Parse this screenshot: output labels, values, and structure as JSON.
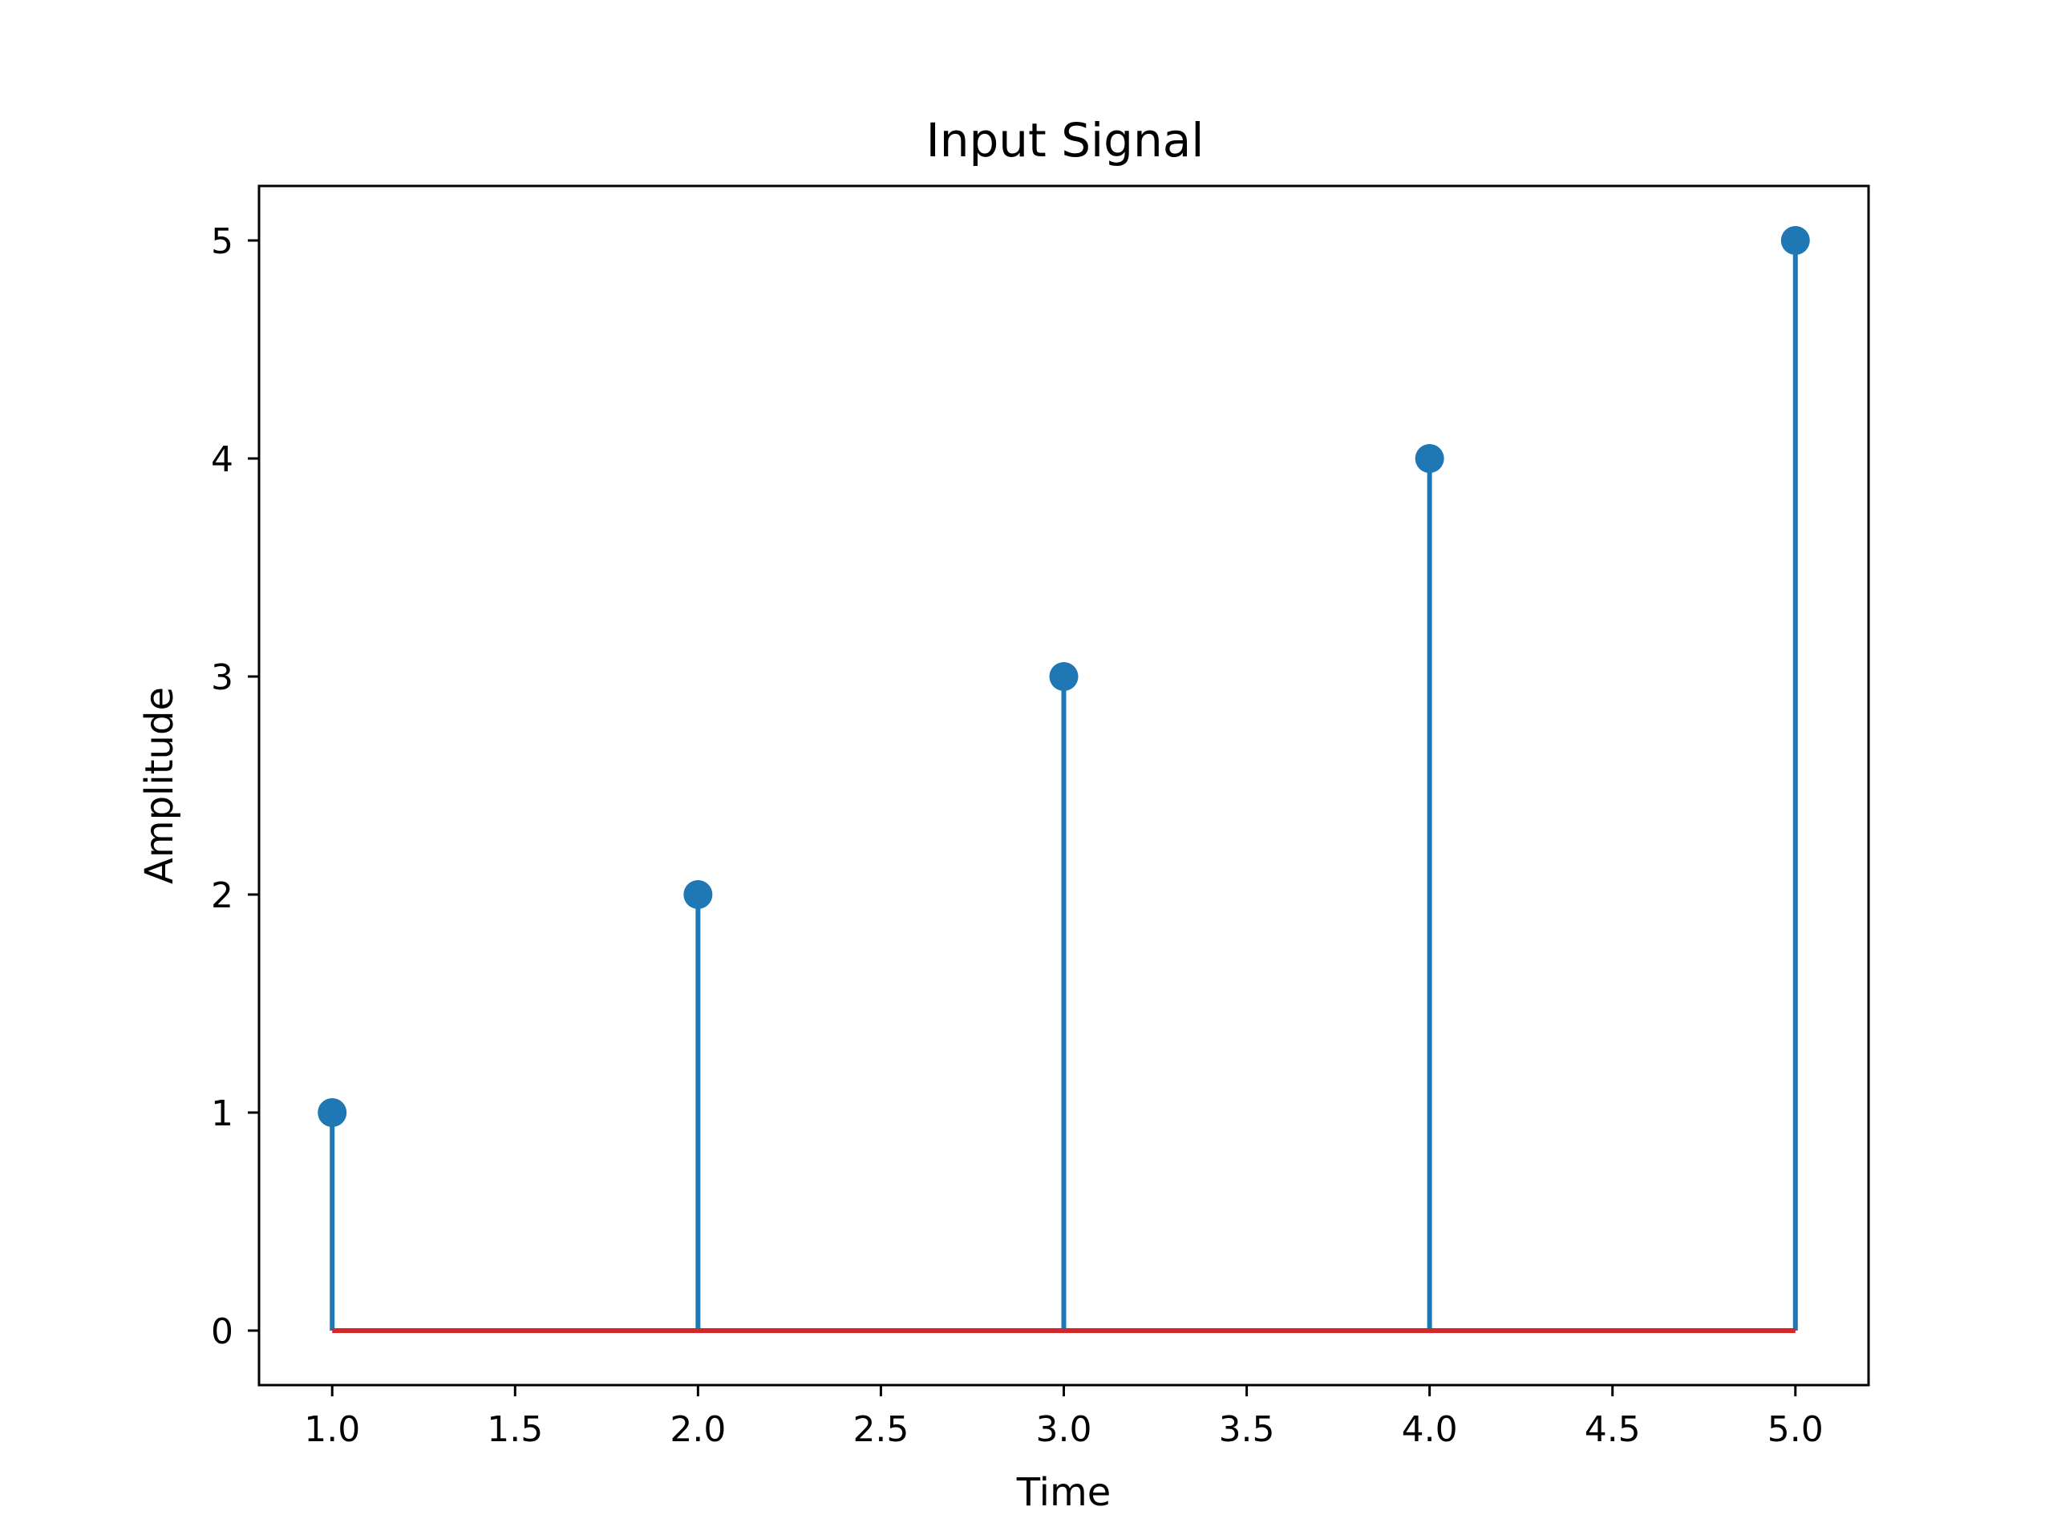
{
  "chart_data": {
    "type": "stem",
    "title": "Input Signal",
    "xlabel": "Time",
    "ylabel": "Amplitude",
    "x": [
      1,
      2,
      3,
      4,
      5
    ],
    "y": [
      1,
      2,
      3,
      4,
      5
    ],
    "xlim": [
      0.8,
      5.2
    ],
    "ylim": [
      -0.25,
      5.25
    ],
    "xticks": [
      1.0,
      1.5,
      2.0,
      2.5,
      3.0,
      3.5,
      4.0,
      4.5,
      5.0
    ],
    "xtick_labels": [
      "1.0",
      "1.5",
      "2.0",
      "2.5",
      "3.0",
      "3.5",
      "4.0",
      "4.5",
      "5.0"
    ],
    "yticks": [
      0,
      1,
      2,
      3,
      4,
      5
    ],
    "ytick_labels": [
      "0",
      "1",
      "2",
      "3",
      "4",
      "5"
    ],
    "baseline": 0,
    "grid": false,
    "colors": {
      "stem": "#1f77b4",
      "marker": "#1f77b4",
      "baseline": "#d62728",
      "axes": "#000000"
    }
  }
}
